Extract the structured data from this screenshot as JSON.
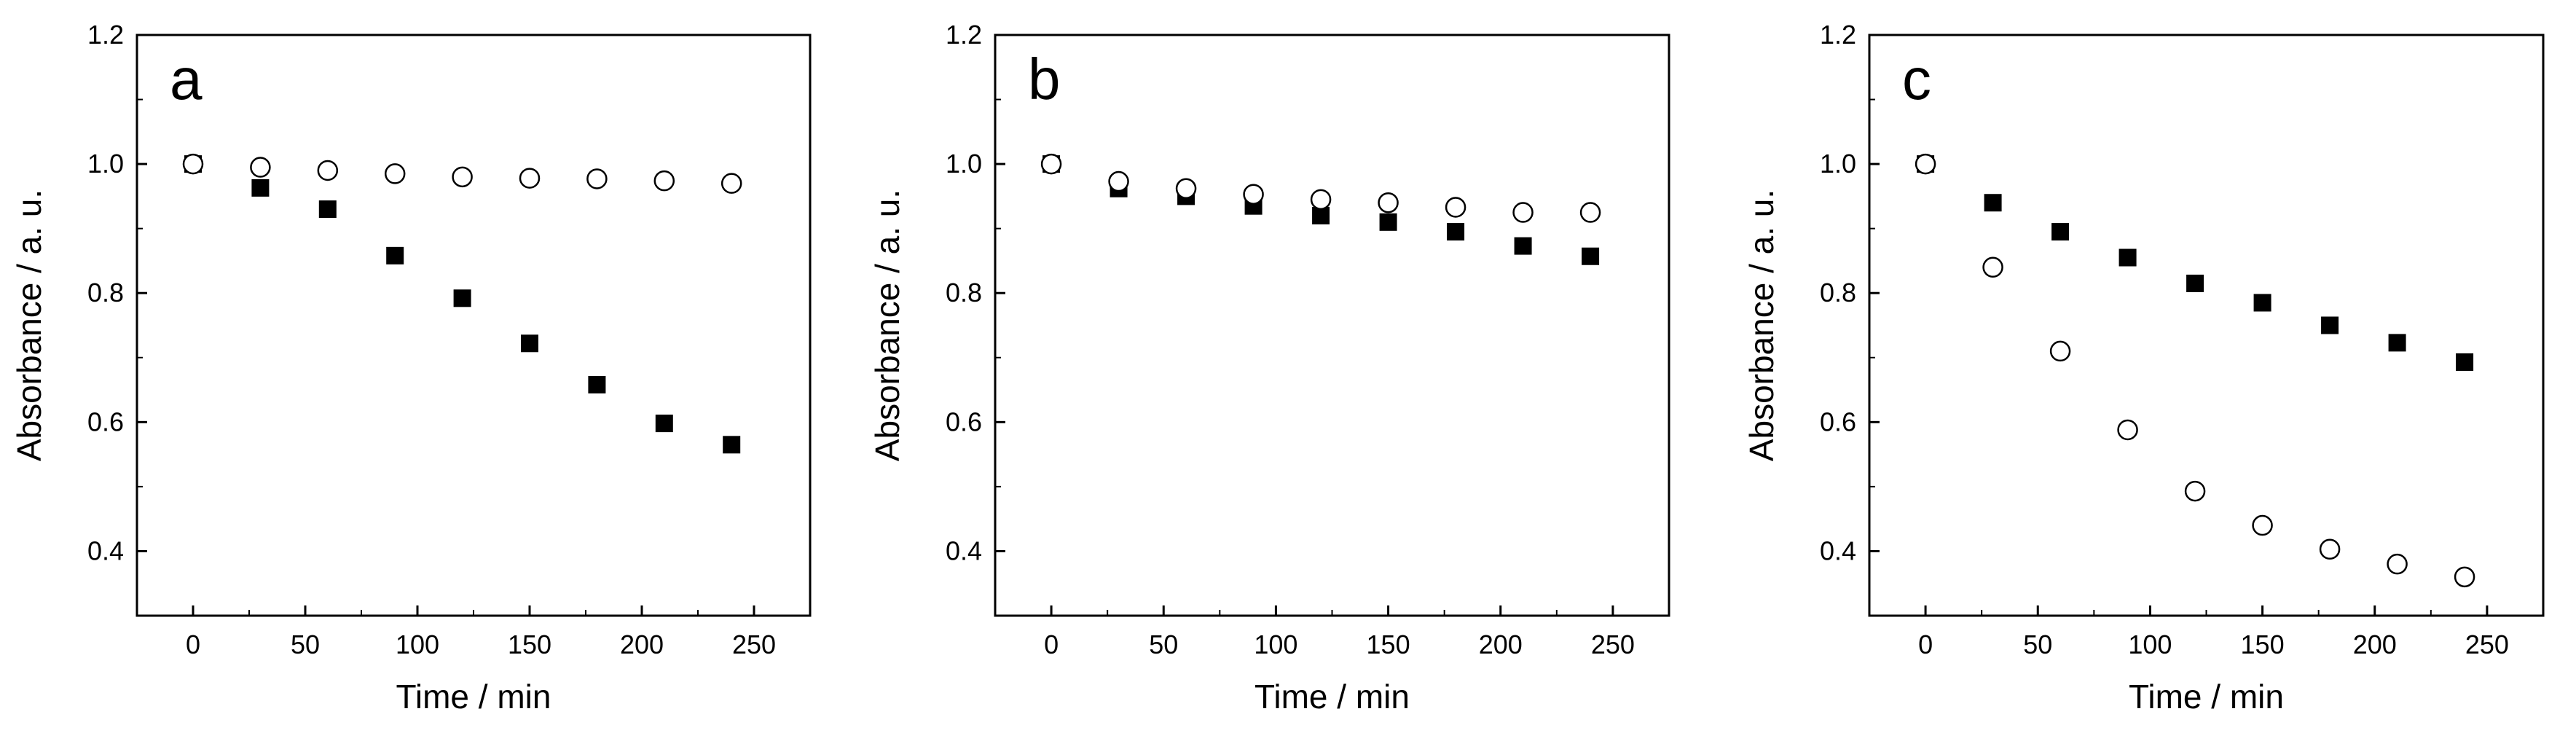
{
  "chart_data": [
    {
      "type": "scatter",
      "panel_label": "a",
      "xlabel": "Time / min",
      "ylabel": "Absorbance / a. u.",
      "xlim": [
        -25,
        275
      ],
      "ylim": [
        0.3,
        1.2
      ],
      "xticks": [
        0,
        50,
        100,
        150,
        200,
        250
      ],
      "yticks": [
        0.4,
        0.6,
        0.8,
        1.0,
        1.2
      ],
      "grid": false,
      "series": [
        {
          "marker": "filled-square",
          "color": "#000000",
          "x": [
            0,
            30,
            60,
            90,
            120,
            150,
            180,
            210,
            240
          ],
          "y": [
            1.0,
            0.963,
            0.93,
            0.858,
            0.792,
            0.722,
            0.658,
            0.598,
            0.565
          ]
        },
        {
          "marker": "open-circle",
          "color": "#000000",
          "x": [
            0,
            30,
            60,
            90,
            120,
            150,
            180,
            210,
            240
          ],
          "y": [
            1.0,
            0.995,
            0.99,
            0.985,
            0.98,
            0.978,
            0.977,
            0.974,
            0.97
          ]
        }
      ]
    },
    {
      "type": "scatter",
      "panel_label": "b",
      "xlabel": "Time / min",
      "ylabel": "Absorbance / a. u.",
      "xlim": [
        -25,
        275
      ],
      "ylim": [
        0.3,
        1.2
      ],
      "xticks": [
        0,
        50,
        100,
        150,
        200,
        250
      ],
      "yticks": [
        0.4,
        0.6,
        0.8,
        1.0,
        1.2
      ],
      "grid": false,
      "series": [
        {
          "marker": "filled-square",
          "color": "#000000",
          "x": [
            0,
            30,
            60,
            90,
            120,
            150,
            180,
            210,
            240
          ],
          "y": [
            1.0,
            0.962,
            0.95,
            0.935,
            0.92,
            0.91,
            0.895,
            0.873,
            0.857
          ]
        },
        {
          "marker": "open-circle",
          "color": "#000000",
          "x": [
            0,
            30,
            60,
            90,
            120,
            150,
            180,
            210,
            240
          ],
          "y": [
            1.0,
            0.973,
            0.962,
            0.953,
            0.945,
            0.94,
            0.933,
            0.925,
            0.925
          ]
        }
      ]
    },
    {
      "type": "scatter",
      "panel_label": "c",
      "xlabel": "Time / min",
      "ylabel": "Absorbance / a. u.",
      "xlim": [
        -25,
        275
      ],
      "ylim": [
        0.3,
        1.2
      ],
      "xticks": [
        0,
        50,
        100,
        150,
        200,
        250
      ],
      "yticks": [
        0.4,
        0.6,
        0.8,
        1.0,
        1.2
      ],
      "grid": false,
      "series": [
        {
          "marker": "filled-square",
          "color": "#000000",
          "x": [
            0,
            30,
            60,
            90,
            120,
            150,
            180,
            210,
            240
          ],
          "y": [
            1.0,
            0.94,
            0.895,
            0.855,
            0.815,
            0.785,
            0.75,
            0.723,
            0.693
          ]
        },
        {
          "marker": "open-circle",
          "color": "#000000",
          "x": [
            0,
            30,
            60,
            90,
            120,
            150,
            180,
            210,
            240
          ],
          "y": [
            1.0,
            0.84,
            0.71,
            0.588,
            0.493,
            0.44,
            0.403,
            0.38,
            0.36
          ]
        }
      ]
    }
  ]
}
